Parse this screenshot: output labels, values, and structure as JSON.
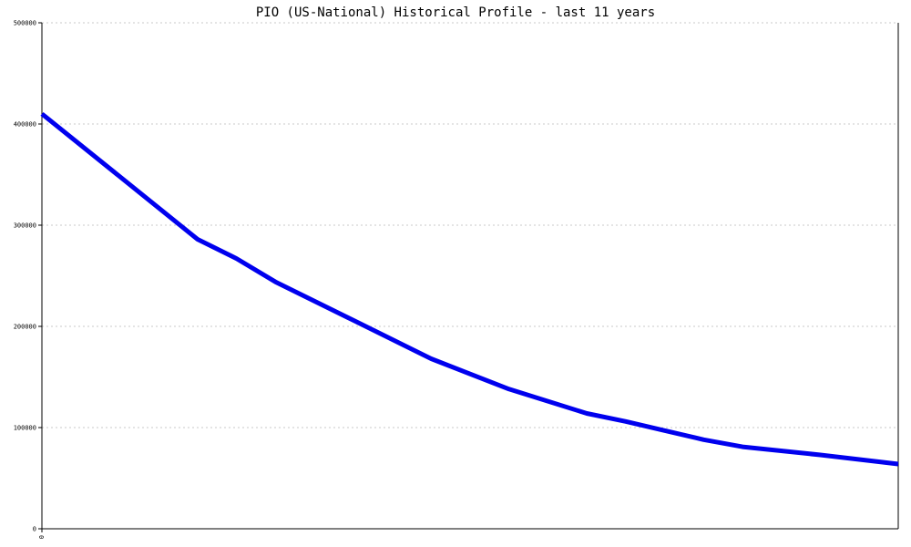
{
  "chart_data": {
    "type": "line",
    "title": "PIO (US-National) Historical Profile - last 11 years",
    "xlabel": "",
    "ylabel": "",
    "ylim": [
      0,
      500000
    ],
    "yticks": [
      {
        "value": 0,
        "label": "0"
      },
      {
        "value": 100000,
        "label": "100000"
      },
      {
        "value": 200000,
        "label": "200000"
      },
      {
        "value": 300000,
        "label": "300000"
      },
      {
        "value": 400000,
        "label": "400000"
      },
      {
        "value": 500000,
        "label": "500000"
      }
    ],
    "xticks": [
      {
        "value": 0,
        "label": "0"
      }
    ],
    "grid": true,
    "series": [
      {
        "color": "#0000ee",
        "points": [
          {
            "x": 0,
            "y": 410000
          },
          {
            "x": 1,
            "y": 348000
          },
          {
            "x": 2,
            "y": 286000
          },
          {
            "x": 2.5,
            "y": 267000
          },
          {
            "x": 3,
            "y": 244000
          },
          {
            "x": 4,
            "y": 206000
          },
          {
            "x": 5,
            "y": 168000
          },
          {
            "x": 6,
            "y": 138000
          },
          {
            "x": 7,
            "y": 114000
          },
          {
            "x": 7.5,
            "y": 106000
          },
          {
            "x": 8,
            "y": 97000
          },
          {
            "x": 8.5,
            "y": 88000
          },
          {
            "x": 9,
            "y": 81000
          },
          {
            "x": 10,
            "y": 73000
          },
          {
            "x": 11,
            "y": 64000
          }
        ]
      }
    ],
    "xlim": [
      0,
      11
    ]
  }
}
